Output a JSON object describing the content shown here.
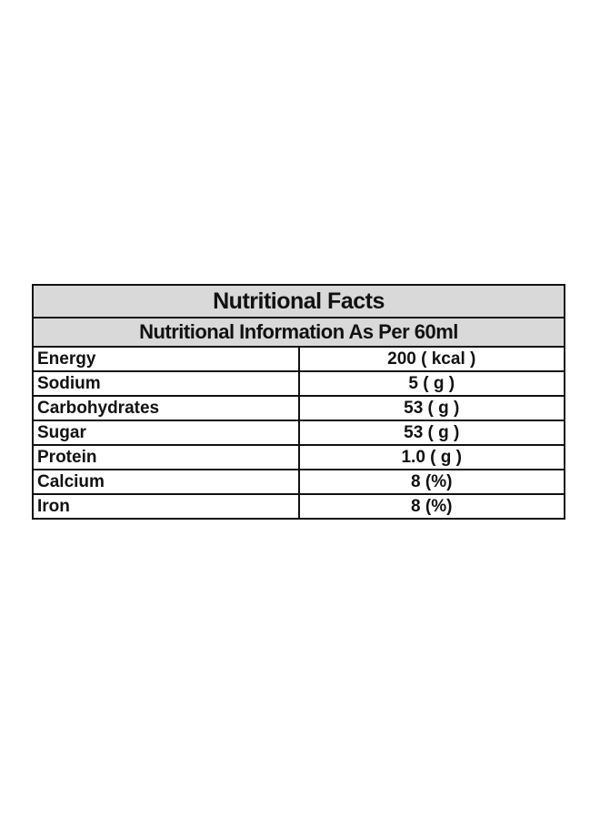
{
  "table": {
    "title": "Nutritional Facts",
    "subtitle": "Nutritional Information As Per 60ml",
    "rows": [
      {
        "name": "Energy",
        "value": "200 ( kcal )"
      },
      {
        "name": "Sodium",
        "value": "5 ( g )"
      },
      {
        "name": "Carbohydrates",
        "value": "53 ( g )"
      },
      {
        "name": "Sugar",
        "value": "53 ( g )"
      },
      {
        "name": "Protein",
        "value": "1.0 ( g )"
      },
      {
        "name": "Calcium",
        "value": "8 (%)"
      },
      {
        "name": "Iron",
        "value": "8 (%)"
      }
    ],
    "colors": {
      "header_background": "#d9d9d9",
      "border": "#111111"
    }
  }
}
